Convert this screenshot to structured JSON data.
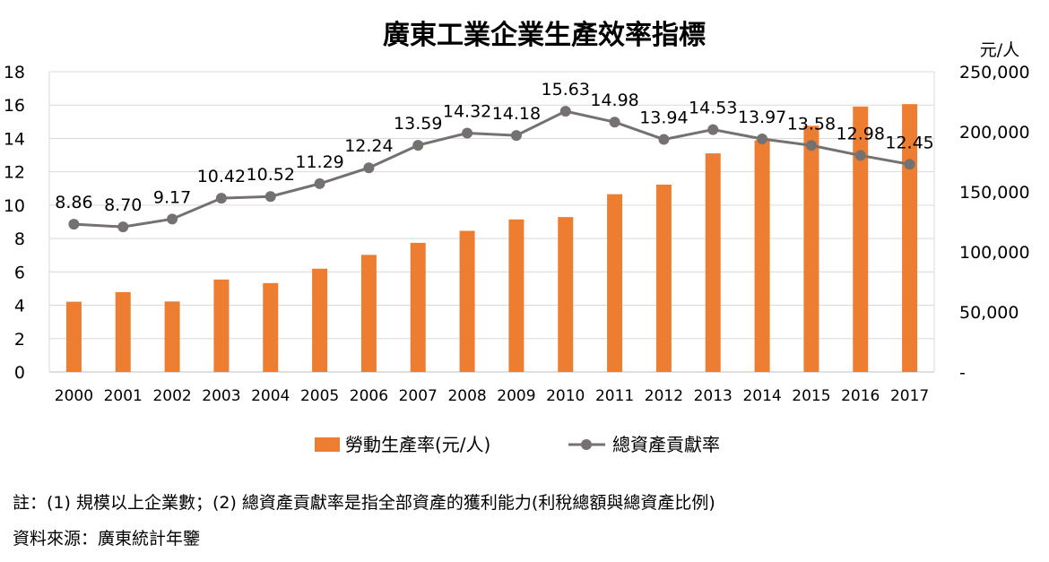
{
  "chart_data": {
    "type": "bar+line",
    "title": "廣東工業企業生產效率指標",
    "categories": [
      "2000",
      "2001",
      "2002",
      "2003",
      "2004",
      "2005",
      "2006",
      "2007",
      "2008",
      "2009",
      "2010",
      "2011",
      "2012",
      "2013",
      "2014",
      "2015",
      "2016",
      "2017"
    ],
    "left_axis": {
      "ticks": [
        "0",
        "2",
        "4",
        "6",
        "8",
        "10",
        "12",
        "14",
        "16",
        "18"
      ],
      "range": [
        0,
        18
      ]
    },
    "right_axis": {
      "unit": "元/人",
      "ticks": [
        "-",
        "50,000",
        "100,000",
        "150,000",
        "200,000",
        "250,000"
      ],
      "range": [
        0,
        250000
      ]
    },
    "series": [
      {
        "name": "勞動生產率(元/人)",
        "type": "bar",
        "axis": "right",
        "color": "#ED7D31",
        "values": [
          58500,
          66500,
          58700,
          77000,
          74000,
          86000,
          97500,
          107500,
          117500,
          127000,
          129000,
          148000,
          156000,
          182000,
          193000,
          205000,
          221000,
          223000
        ]
      },
      {
        "name": "總資產貢獻率",
        "type": "line",
        "axis": "left",
        "color": "#767171",
        "values": [
          8.86,
          8.7,
          9.17,
          10.42,
          10.52,
          11.29,
          12.24,
          13.59,
          14.32,
          14.18,
          15.63,
          14.98,
          13.94,
          14.53,
          13.97,
          13.58,
          12.98,
          12.45
        ],
        "labels": [
          "8.86",
          "8.70",
          "9.17",
          "10.42",
          "10.52",
          "11.29",
          "12.24",
          "13.59",
          "14.32",
          "14.18",
          "15.63",
          "14.98",
          "13.94",
          "14.53",
          "13.97",
          "13.58",
          "12.98",
          "12.45"
        ]
      }
    ],
    "grid": true,
    "legend": "bottom"
  },
  "footnotes": {
    "note": "註：(1) 規模以上企業數；(2) 總資產貢獻率是指全部資產的獲利能力(利稅總額與總資產比例)",
    "source": "資料來源：廣東統計年鑒"
  }
}
